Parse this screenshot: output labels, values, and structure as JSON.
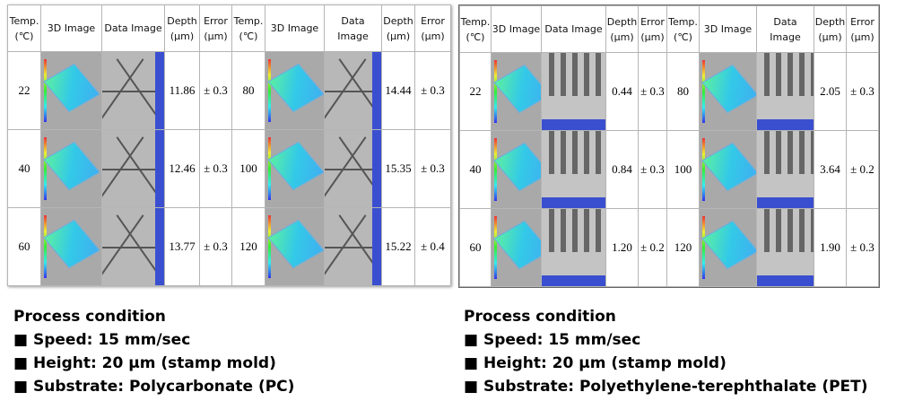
{
  "tables": {
    "left": {
      "header": [
        [
          "Temp.",
          "(℃)"
        ],
        [
          "3D Image"
        ],
        [
          "Data Image"
        ],
        [
          "Depth",
          "(μm)"
        ],
        [
          "Error",
          "(μm)"
        ],
        [
          "Temp.",
          "(℃)"
        ],
        [
          "3D Image"
        ],
        [
          "Data Image"
        ],
        [
          "Depth",
          "(μm)"
        ],
        [
          "Error",
          "(μm)"
        ]
      ],
      "rows": [
        [
          "22",
          "11.86",
          "± 0.3",
          "80",
          "14.44",
          "± 0.3"
        ],
        [
          "40",
          "12.46",
          "± 0.3",
          "100",
          "15.35",
          "± 0.3"
        ],
        [
          "60",
          "13.77",
          "± 0.3",
          "120",
          "15.22",
          "± 0.4"
        ]
      ],
      "conditions": {
        "title": "Process condition",
        "items": [
          "■ Speed: 15 mm/sec",
          "■ Height: 20 μm (stamp mold)",
          "■ Substrate: Polycarbonate  (PC)"
        ]
      }
    },
    "right": {
      "header": [
        [
          "Temp.",
          "(℃)"
        ],
        [
          "3D Image"
        ],
        [
          "Data Image"
        ],
        [
          "Depth",
          "(μm)"
        ],
        [
          "Error",
          "(μm)"
        ],
        [
          "Temp.",
          "(℃)"
        ],
        [
          "3D Image"
        ],
        [
          "Data Image"
        ],
        [
          "Depth",
          "(μm)"
        ],
        [
          "Error",
          "(μm)"
        ]
      ],
      "rows": [
        [
          "22",
          "0.44",
          "± 0.3",
          "80",
          "2.05",
          "± 0.3"
        ],
        [
          "40",
          "0.84",
          "± 0.3",
          "100",
          "3.64",
          "± 0.2"
        ],
        [
          "60",
          "1.20",
          "± 0.2",
          "120",
          "1.90",
          "± 0.3"
        ]
      ],
      "conditions": {
        "title": "Process condition",
        "items": [
          "■ Speed: 15 mm/sec",
          "■ Height: 20 μm (stamp mold)",
          "■ Substrate: Polyethylene-terephthalate (PET)"
        ]
      }
    }
  }
}
